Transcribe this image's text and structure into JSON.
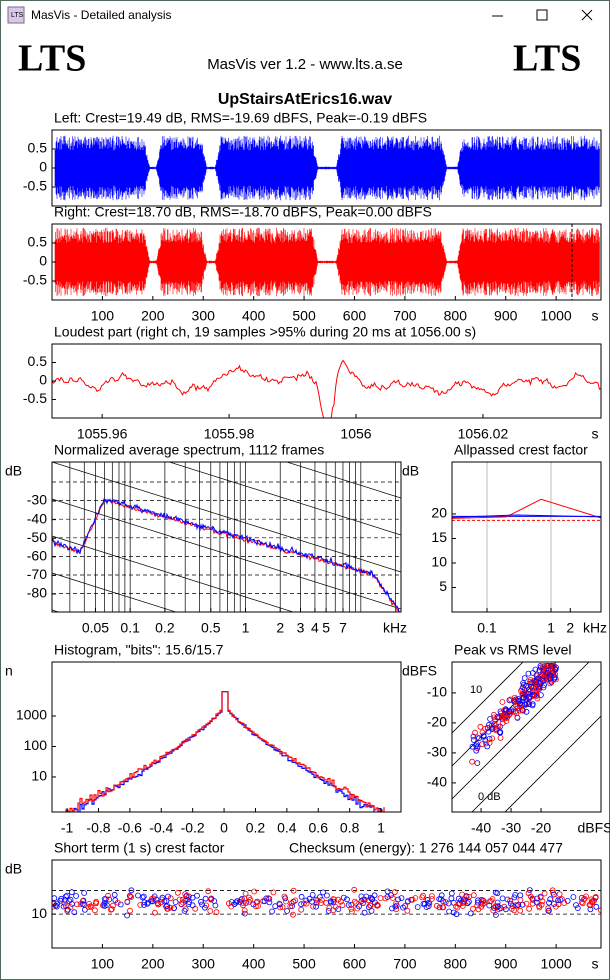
{
  "window": {
    "title": "MasVis - Detailed analysis"
  },
  "header": {
    "logo_left": "LTS",
    "logo_right": "LTS",
    "version": "MasVis ver 1.2 - www.lts.a.se",
    "filename": "UpStairsAtErics16.wav"
  },
  "panels": {
    "left": {
      "title": "Left: Crest=19.49 dB, RMS=-19.69 dBFS, Peak=-0.19 dBFS",
      "yticks": [
        0.5,
        0,
        -0.5
      ],
      "ylim": [
        -1,
        1
      ]
    },
    "right": {
      "title": "Right: Crest=18.70 dB, RMS=-18.70 dBFS, Peak=0.00 dBFS",
      "yticks": [
        0.5,
        0,
        -0.5
      ],
      "ylim": [
        -1,
        1
      ],
      "xticks": [
        100,
        200,
        300,
        400,
        500,
        600,
        700,
        800,
        900,
        1000
      ],
      "xlim": [
        0,
        1089
      ],
      "x_unit": "s"
    },
    "loudest": {
      "title": "Loudest part (right ch, 19 samples >95% during 20 ms at 1056.00 s)",
      "yticks": [
        0.5,
        0,
        -0.5
      ],
      "ylim": [
        -1,
        1
      ],
      "xticks": [
        1055.96,
        1055.98,
        1056,
        1056.02
      ],
      "xlim": [
        1055.9521,
        1056.0386
      ],
      "x_unit": "s"
    },
    "spectrum": {
      "title": "Normalized average spectrum, 1112 frames",
      "y_unit": "dB",
      "yticks": [
        -30,
        -40,
        -50,
        -60,
        -70,
        -80
      ],
      "ylim": [
        -89.7,
        -9
      ],
      "xticks": [
        0.05,
        0.1,
        0.2,
        0.5,
        1,
        2,
        3,
        4,
        5,
        7
      ],
      "xlim": [
        0.021,
        22.3
      ],
      "xlog": true,
      "x_unit": "kHz"
    },
    "crest": {
      "title": "Allpassed crest factor",
      "y_unit": "dB",
      "yticks": [
        20,
        15,
        10,
        5
      ],
      "ylim": [
        0,
        30.6
      ],
      "xticks": [
        0.1,
        1,
        2
      ],
      "xlim": [
        0.0284,
        6.04
      ],
      "xlog": true,
      "x_unit": "kHz"
    },
    "histogram": {
      "title": "Histogram, \"bits\": 15.6/15.7",
      "y_unit": "n",
      "yticks": [
        1000,
        100,
        10
      ],
      "ylim": [
        0.71,
        58900
      ],
      "ylog": true,
      "xticks": [
        -1,
        -0.8,
        -0.6,
        -0.4,
        -0.2,
        0,
        0.2,
        0.4,
        0.6,
        0.8,
        1
      ],
      "xlim": [
        -1.096,
        1.127
      ]
    },
    "peak": {
      "title": "Peak vs RMS level",
      "y_unit": "dBFS",
      "yticks": [
        -10,
        -20,
        -30,
        -40
      ],
      "ylim": [
        -49.7,
        0.3
      ],
      "xticks": [
        -40,
        -30,
        -20
      ],
      "xlim": [
        -49.7,
        0
      ],
      "x_unit": "dBFS",
      "annotations": [
        "10",
        "0 dB"
      ]
    },
    "short": {
      "title": "Short term (1 s) crest factor",
      "checksum": "Checksum (energy):  1 276 144 057 044 477",
      "y_unit": "dB",
      "yticks": [
        10
      ],
      "ylim": [
        0,
        26
      ],
      "xticks": [
        100,
        200,
        300,
        400,
        500,
        600,
        700,
        800,
        900,
        1000
      ],
      "xlim": [
        0,
        1089
      ],
      "x_unit": "s"
    }
  }
}
